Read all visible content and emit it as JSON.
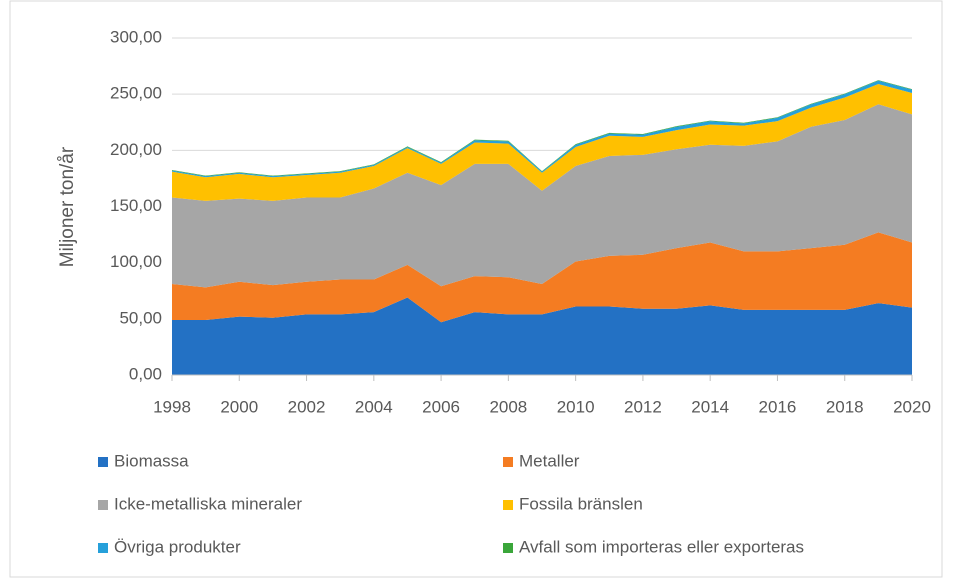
{
  "chart_data": {
    "type": "stacked_area",
    "y_label": "Miljoner ton/år",
    "x": [
      1998,
      1999,
      2000,
      2001,
      2002,
      2003,
      2004,
      2005,
      2006,
      2007,
      2008,
      2009,
      2010,
      2011,
      2012,
      2013,
      2014,
      2015,
      2016,
      2017,
      2018,
      2019,
      2020
    ],
    "xlim": [
      1998,
      2020
    ],
    "xticks": [
      1998,
      2000,
      2002,
      2004,
      2006,
      2008,
      2010,
      2012,
      2014,
      2016,
      2018,
      2020
    ],
    "ylim": [
      0,
      300
    ],
    "yticks": [
      {
        "value": 0,
        "label": "0,00"
      },
      {
        "value": 50,
        "label": "50,00"
      },
      {
        "value": 100,
        "label": "100,00"
      },
      {
        "value": 150,
        "label": "150,00"
      },
      {
        "value": 200,
        "label": "200,00"
      },
      {
        "value": 250,
        "label": "250,00"
      },
      {
        "value": 300,
        "label": "300,00"
      }
    ],
    "grid": true,
    "legend": "bottom",
    "series": [
      {
        "name": "Biomassa",
        "color": "#2371c4",
        "values": [
          49,
          49,
          52,
          51,
          54,
          54,
          56,
          69,
          47,
          56,
          54,
          54,
          61,
          61,
          59,
          59,
          62,
          58,
          58,
          58,
          58,
          64,
          60
        ]
      },
      {
        "name": "Metaller",
        "color": "#f47c22",
        "values": [
          32,
          29,
          31,
          29,
          29,
          31,
          29,
          29,
          32,
          32,
          33,
          27,
          40,
          45,
          48,
          54,
          56,
          52,
          52,
          55,
          58,
          63,
          58
        ]
      },
      {
        "name": "Icke-metalliska mineraler",
        "color": "#a6a6a6",
        "values": [
          77,
          77,
          74,
          75,
          75,
          73,
          81,
          82,
          90,
          100,
          101,
          83,
          85,
          89,
          89,
          88,
          87,
          94,
          98,
          108,
          111,
          114,
          114
        ]
      },
      {
        "name": "Fossila bränslen",
        "color": "#ffc000",
        "values": [
          23,
          21,
          22,
          21,
          20,
          22,
          20,
          22,
          19,
          19,
          18,
          16,
          17,
          18,
          16,
          17,
          18,
          18,
          18,
          17,
          20,
          18,
          19
        ]
      },
      {
        "name": "Övriga produkter",
        "color": "#26a0da",
        "values": [
          1,
          1,
          1,
          1,
          1,
          1,
          1,
          1,
          1,
          2,
          2,
          1,
          2,
          2,
          2,
          3,
          3,
          2,
          3,
          3,
          3,
          3,
          3
        ]
      },
      {
        "name": "Avfall som importeras eller exporteras",
        "color": "#3aa63a",
        "values": [
          0.5,
          0.5,
          0.5,
          0.5,
          0.5,
          0.5,
          0.5,
          0.5,
          0.5,
          0.5,
          0.5,
          0.5,
          0.5,
          0.5,
          0.5,
          0.5,
          0.5,
          0.5,
          0.5,
          0.5,
          0.5,
          0.5,
          0.5
        ]
      }
    ]
  }
}
